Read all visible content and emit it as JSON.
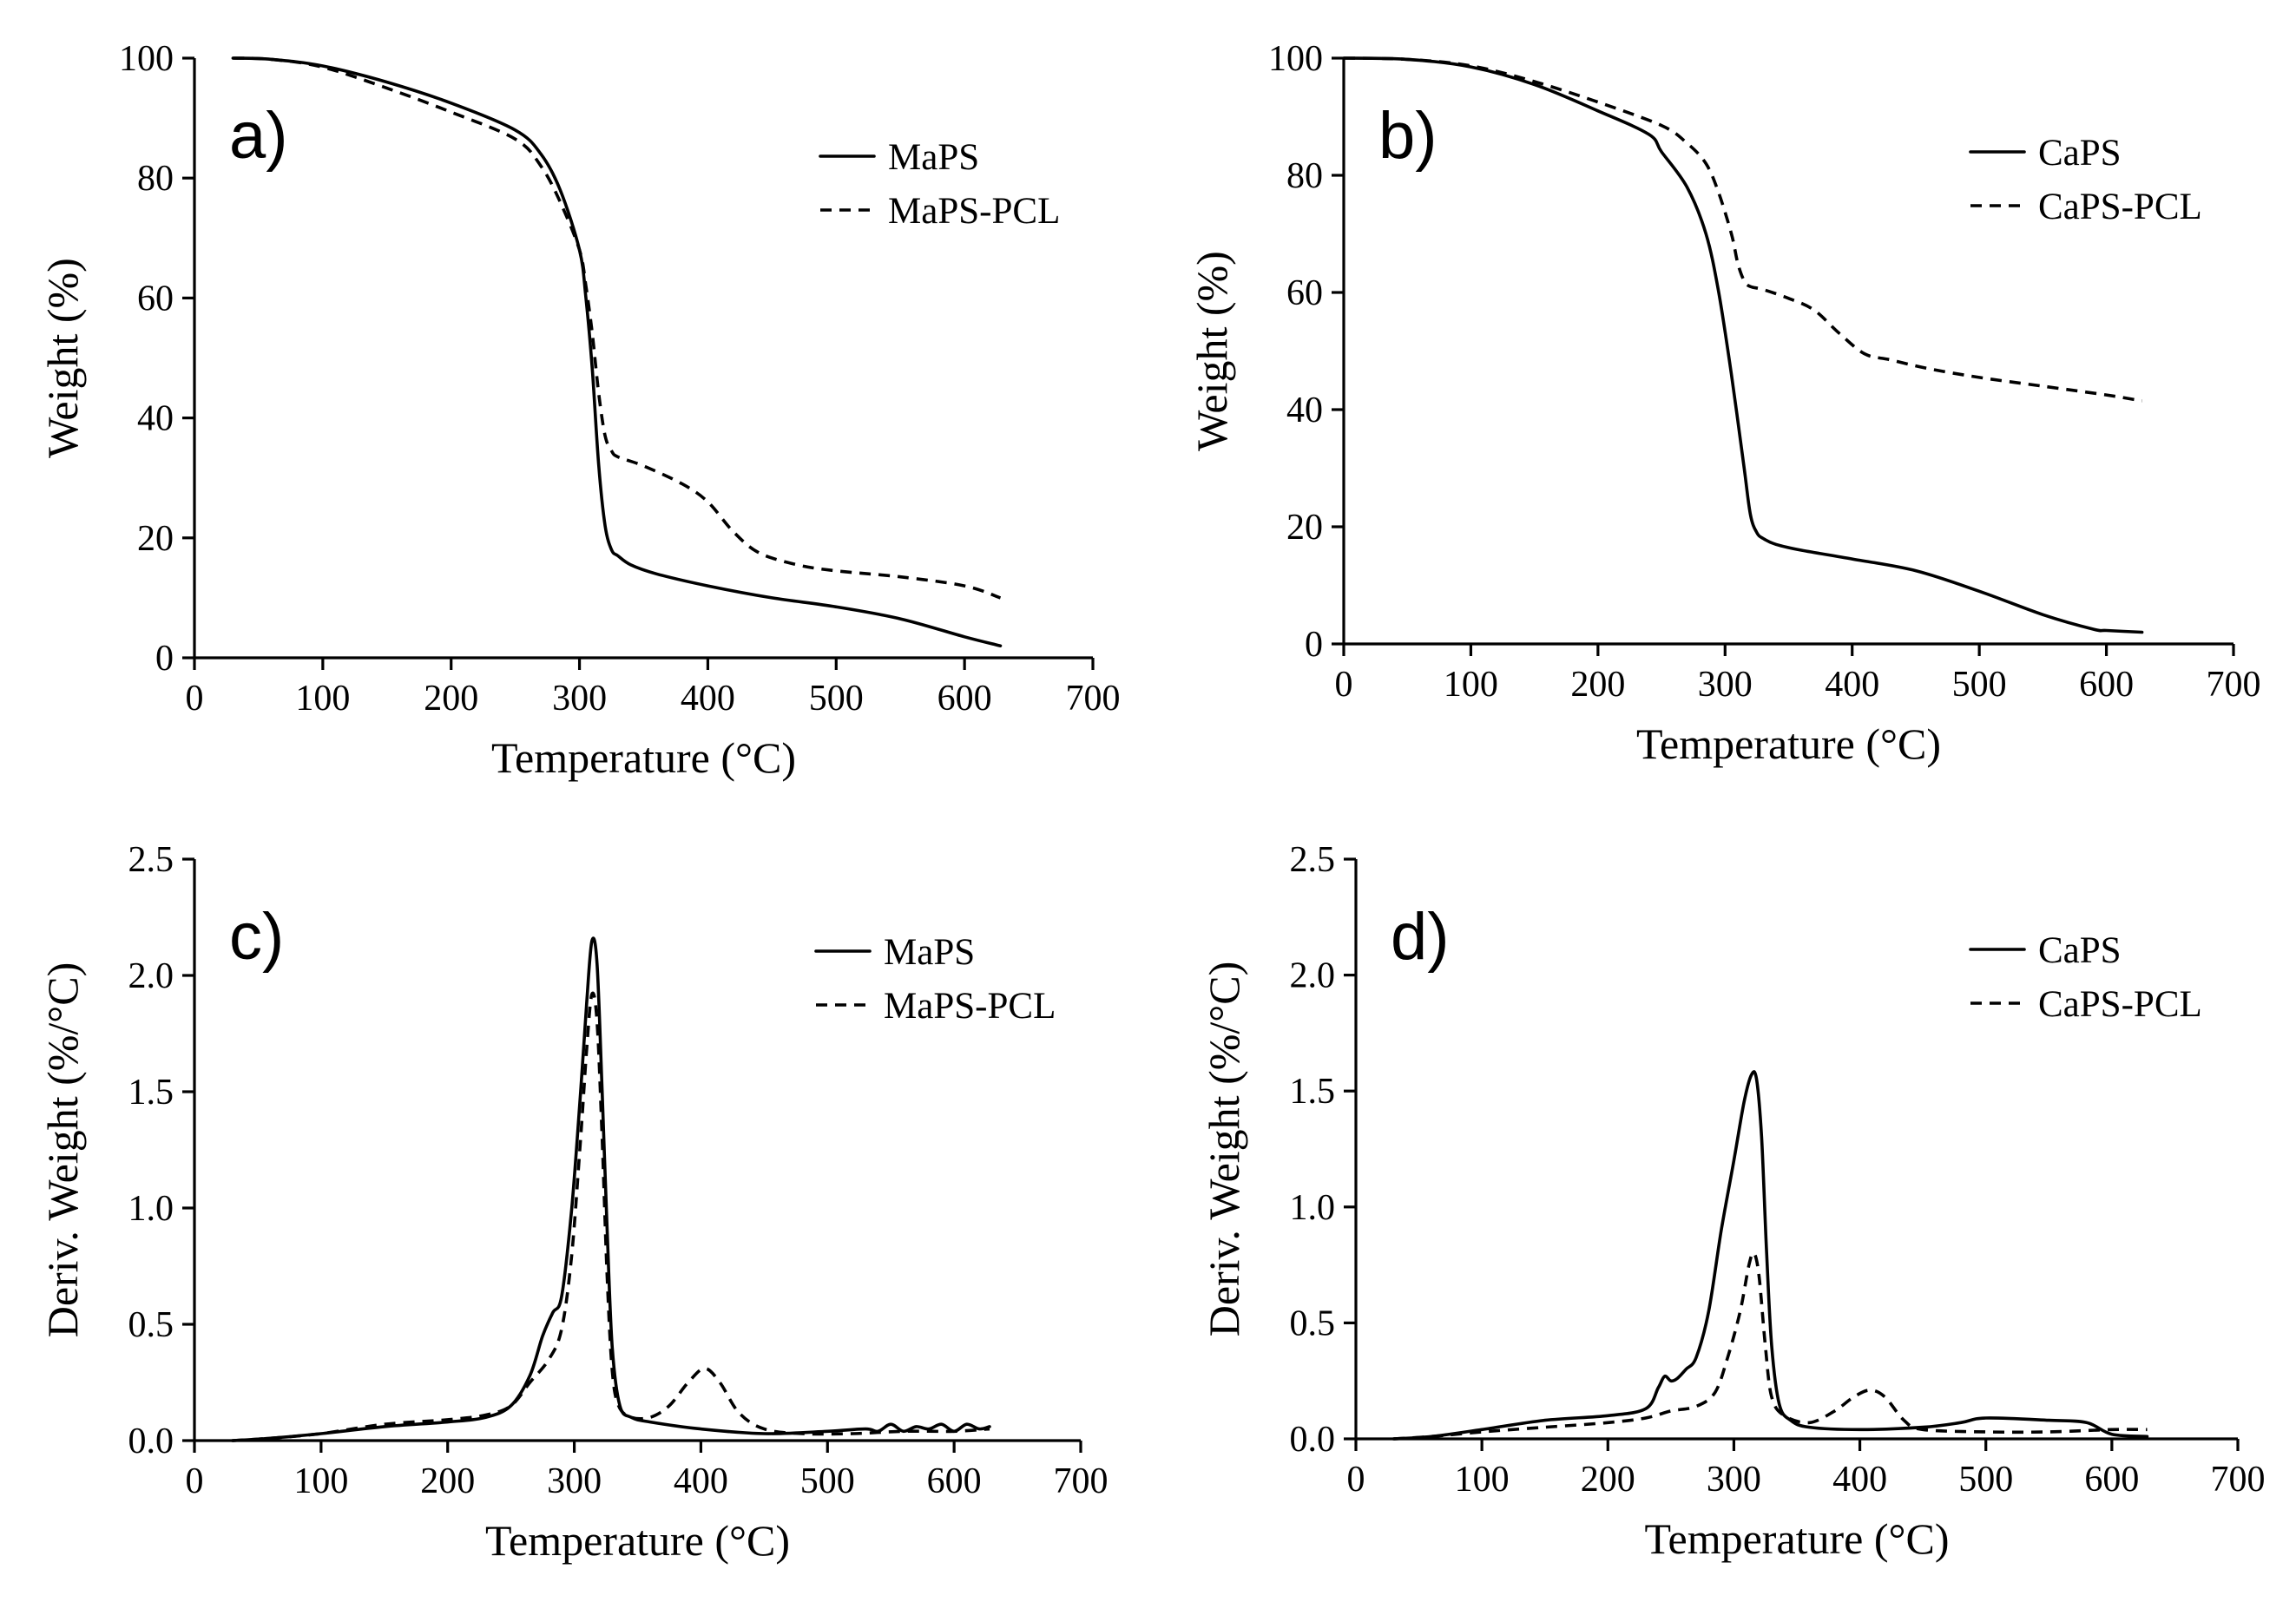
{
  "chart_data": [
    {
      "type": "line",
      "panel_label": "a)",
      "xlabel": "Temperature (°C)",
      "ylabel": "Weight (%)",
      "xlim": [
        0,
        700
      ],
      "ylim": [
        0,
        100
      ],
      "xticks": [
        0,
        100,
        200,
        300,
        400,
        500,
        600,
        700
      ],
      "yticks": [
        0,
        20,
        40,
        60,
        80,
        100
      ],
      "legend_position": "top-right",
      "series": [
        {
          "name": "MaPS",
          "style": "solid",
          "x": [
            30,
            60,
            100,
            150,
            200,
            250,
            270,
            285,
            300,
            305,
            310,
            315,
            320,
            325,
            330,
            340,
            360,
            400,
            450,
            500,
            550,
            600,
            628
          ],
          "y": [
            100,
            99.8,
            98.7,
            96,
            92.5,
            88,
            84,
            78,
            68,
            60,
            48,
            32,
            22,
            18,
            17,
            15.5,
            14,
            12,
            10,
            8.5,
            6.5,
            3.5,
            2
          ]
        },
        {
          "name": "MaPS-PCL",
          "style": "dashed",
          "x": [
            30,
            60,
            100,
            150,
            200,
            250,
            270,
            285,
            300,
            305,
            310,
            315,
            320,
            325,
            330,
            350,
            380,
            400,
            420,
            440,
            470,
            500,
            550,
            600,
            628
          ],
          "y": [
            100,
            99.8,
            98.5,
            95,
            91,
            86.5,
            82,
            76,
            68,
            62,
            54,
            44,
            37,
            34.5,
            33.5,
            32,
            29,
            26,
            21,
            17.5,
            15.5,
            14.5,
            13.5,
            12,
            10
          ]
        }
      ]
    },
    {
      "type": "line",
      "panel_label": "b)",
      "xlabel": "Temperature (°C)",
      "ylabel": "Weight (%)",
      "xlim": [
        0,
        700
      ],
      "ylim": [
        0,
        100
      ],
      "xticks": [
        0,
        100,
        200,
        300,
        400,
        500,
        600,
        700
      ],
      "yticks": [
        0,
        20,
        40,
        60,
        80,
        100
      ],
      "legend_position": "top-right",
      "series": [
        {
          "name": "CaPS",
          "style": "solid",
          "x": [
            0,
            50,
            100,
            150,
            200,
            240,
            250,
            270,
            285,
            295,
            305,
            315,
            320,
            325,
            330,
            340,
            360,
            400,
            450,
            500,
            550,
            590,
            600,
            628
          ],
          "y": [
            100,
            99.8,
            98.5,
            95.5,
            91,
            87,
            84,
            78,
            70,
            60,
            46,
            30,
            22,
            19,
            18,
            17,
            16,
            14.5,
            12.5,
            9,
            5,
            2.5,
            2.3,
            2
          ]
        },
        {
          "name": "CaPS-PCL",
          "style": "dashed",
          "x": [
            0,
            50,
            100,
            150,
            200,
            250,
            270,
            285,
            295,
            305,
            310,
            315,
            320,
            330,
            350,
            370,
            390,
            410,
            430,
            460,
            500,
            550,
            600,
            628
          ],
          "y": [
            100,
            99.8,
            98.7,
            96,
            92.5,
            88.5,
            85.5,
            82,
            77,
            70,
            65,
            62,
            61,
            60.5,
            59,
            57,
            53,
            49.5,
            48.5,
            47,
            45.5,
            44,
            42.5,
            41.5
          ]
        }
      ]
    },
    {
      "type": "line",
      "panel_label": "c)",
      "xlabel": "Temperature (°C)",
      "ylabel": "Deriv. Weight (%/°C)",
      "xlim": [
        0,
        700
      ],
      "ylim": [
        0,
        2.5
      ],
      "xticks": [
        0,
        100,
        200,
        300,
        400,
        500,
        600,
        700
      ],
      "yticks": [
        0.0,
        0.5,
        1.0,
        1.5,
        2.0,
        2.5
      ],
      "ytick_labels": [
        "0.0",
        "0.5",
        "1.0",
        "1.5",
        "2.0",
        "2.5"
      ],
      "legend_position": "top-right",
      "series": [
        {
          "name": "MaPS",
          "style": "solid",
          "x": [
            30,
            60,
            100,
            150,
            200,
            230,
            250,
            265,
            275,
            283,
            290,
            298,
            305,
            310,
            314,
            318,
            322,
            326,
            330,
            336,
            345,
            360,
            400,
            450,
            500,
            530,
            540,
            550,
            560,
            570,
            580,
            590,
            600,
            610,
            620,
            628
          ],
          "y": [
            0.0,
            0.01,
            0.03,
            0.06,
            0.08,
            0.1,
            0.15,
            0.28,
            0.45,
            0.55,
            0.62,
            1.0,
            1.5,
            1.9,
            2.15,
            2.05,
            1.5,
            0.9,
            0.4,
            0.15,
            0.1,
            0.08,
            0.05,
            0.03,
            0.04,
            0.05,
            0.04,
            0.07,
            0.04,
            0.06,
            0.05,
            0.07,
            0.04,
            0.07,
            0.05,
            0.06
          ]
        },
        {
          "name": "MaPS-PCL",
          "style": "dashed",
          "x": [
            30,
            60,
            100,
            150,
            200,
            230,
            250,
            265,
            280,
            290,
            298,
            305,
            310,
            314,
            318,
            322,
            326,
            330,
            335,
            345,
            360,
            375,
            390,
            403,
            415,
            430,
            450,
            480,
            520,
            560,
            600,
            628
          ],
          "y": [
            0.0,
            0.01,
            0.03,
            0.07,
            0.09,
            0.11,
            0.15,
            0.25,
            0.35,
            0.48,
            0.8,
            1.3,
            1.7,
            1.92,
            1.8,
            1.3,
            0.7,
            0.3,
            0.15,
            0.1,
            0.1,
            0.15,
            0.25,
            0.31,
            0.25,
            0.12,
            0.05,
            0.03,
            0.03,
            0.04,
            0.04,
            0.05
          ]
        }
      ]
    },
    {
      "type": "line",
      "panel_label": "d)",
      "xlabel": "Temperature (°C)",
      "ylabel": "Deriv. Weight (%/°C)",
      "xlim": [
        0,
        700
      ],
      "ylim": [
        0,
        2.5
      ],
      "xticks": [
        0,
        100,
        200,
        300,
        400,
        500,
        600,
        700
      ],
      "yticks": [
        0.0,
        0.5,
        1.0,
        1.5,
        2.0,
        2.5
      ],
      "ytick_labels": [
        "0.0",
        "0.5",
        "1.0",
        "1.5",
        "2.0",
        "2.5"
      ],
      "legend_position": "top-right",
      "series": [
        {
          "name": "CaPS",
          "style": "solid",
          "x": [
            30,
            60,
            100,
            150,
            200,
            230,
            240,
            245,
            250,
            255,
            262,
            270,
            280,
            290,
            300,
            308,
            314,
            318,
            322,
            326,
            330,
            336,
            345,
            360,
            400,
            450,
            480,
            500,
            550,
            580,
            600,
            628
          ],
          "y": [
            0.0,
            0.01,
            0.04,
            0.08,
            0.1,
            0.13,
            0.22,
            0.27,
            0.25,
            0.26,
            0.3,
            0.35,
            0.55,
            0.9,
            1.2,
            1.45,
            1.57,
            1.55,
            1.3,
            0.8,
            0.4,
            0.15,
            0.08,
            0.05,
            0.04,
            0.05,
            0.07,
            0.09,
            0.08,
            0.07,
            0.02,
            0.01
          ]
        },
        {
          "name": "CaPS-PCL",
          "style": "dashed",
          "x": [
            30,
            60,
            100,
            150,
            200,
            230,
            250,
            270,
            285,
            295,
            305,
            312,
            316,
            320,
            325,
            330,
            340,
            360,
            380,
            395,
            408,
            420,
            435,
            450,
            500,
            550,
            600,
            628
          ],
          "y": [
            0.0,
            0.01,
            0.03,
            0.05,
            0.07,
            0.09,
            0.12,
            0.14,
            0.2,
            0.35,
            0.55,
            0.75,
            0.8,
            0.7,
            0.4,
            0.18,
            0.1,
            0.07,
            0.12,
            0.18,
            0.21,
            0.18,
            0.08,
            0.04,
            0.03,
            0.03,
            0.04,
            0.04
          ]
        }
      ]
    }
  ]
}
